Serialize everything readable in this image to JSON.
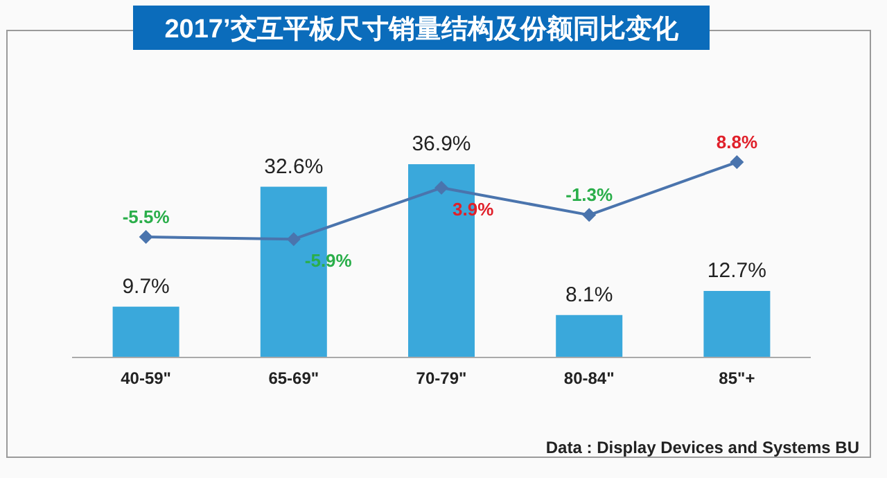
{
  "chart_data": {
    "type": "bar",
    "title": "2017’交互平板尺寸销量结构及份额同比变化",
    "categories": [
      "40-59\"",
      "65-69\"",
      "70-79\"",
      "80-84\"",
      "85\"+"
    ],
    "series": [
      {
        "color": "#3aa8db",
        "values": [
          9.7,
          32.6,
          36.9,
          8.1,
          12.7
        ],
        "value_labels": [
          "9.7%",
          "32.6%",
          "36.9%",
          "8.1%",
          "12.7%"
        ]
      },
      {
        "type": "line",
        "axis": "y2",
        "color": "#4a74ad",
        "marker": "diamond",
        "values": [
          -5.5,
          -5.9,
          3.9,
          -1.3,
          8.8
        ],
        "value_labels": [
          "-5.5%",
          "-5.9%",
          "3.9%",
          "-1.3%",
          "8.8%"
        ]
      }
    ],
    "tick_labels": "x",
    "annotations": [
      "Data : Display Devices and Systems BU"
    ]
  }
}
